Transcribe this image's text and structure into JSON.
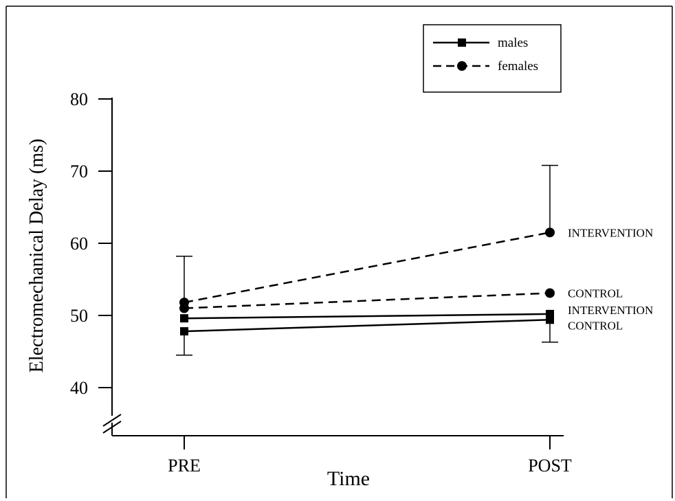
{
  "chart_data": {
    "type": "line",
    "title": "",
    "xlabel": "Time",
    "ylabel": "Electromechanical Delay (ms)",
    "categories": [
      "PRE",
      "POST"
    ],
    "ylim": [
      35,
      80
    ],
    "yticks": [
      40,
      50,
      60,
      70,
      80
    ],
    "axis_break": true,
    "grid": false,
    "legend": {
      "position": "top-right",
      "entries": [
        {
          "label": "males",
          "line": "solid",
          "marker": "square"
        },
        {
          "label": "females",
          "line": "dashed",
          "marker": "circle"
        }
      ]
    },
    "series": [
      {
        "sex": "females",
        "group_label": "INTERVENTION",
        "line": "dashed",
        "marker": "circle",
        "values": [
          51.8,
          61.5
        ],
        "error_bars": [
          {
            "index": 0,
            "upper": 58.2
          },
          {
            "index": 1,
            "upper": 70.8
          }
        ]
      },
      {
        "sex": "females",
        "group_label": "CONTROL",
        "line": "dashed",
        "marker": "circle",
        "values": [
          51.0,
          53.1
        ],
        "error_bars": []
      },
      {
        "sex": "males",
        "group_label": "INTERVENTION",
        "line": "solid",
        "marker": "square",
        "values": [
          49.6,
          50.2
        ],
        "error_bars": []
      },
      {
        "sex": "males",
        "group_label": "CONTROL",
        "line": "solid",
        "marker": "square",
        "values": [
          47.8,
          49.4
        ],
        "error_bars": [
          {
            "index": 0,
            "lower": 44.5
          },
          {
            "index": 1,
            "lower": 46.3
          }
        ]
      }
    ],
    "colors": {
      "ink": "#000000",
      "background": "#ffffff"
    }
  }
}
